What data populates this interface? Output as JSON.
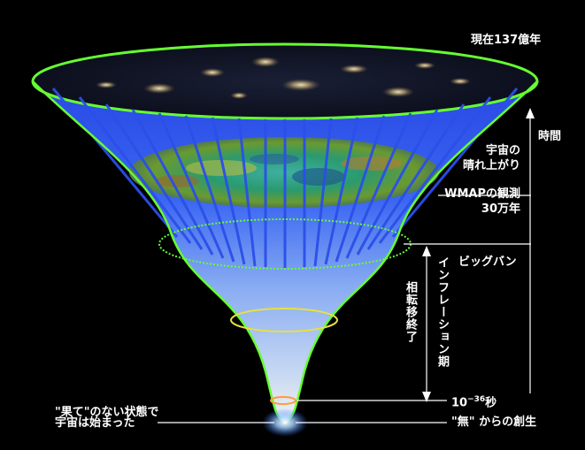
{
  "labels": {
    "present": "現在137億年",
    "time": "時間",
    "clear_up_line1": "宇宙の",
    "clear_up_line2": "晴れ上がり",
    "wmap_line1": "WMAPの観測",
    "wmap_line2": "30万年",
    "big_bang": "ビッグバン",
    "inflation_period": "インフレーション期",
    "phase_transition": "相転移終了",
    "time_base": "10",
    "time_exp": "−36",
    "time_unit": "秒",
    "no_end_line1": "\"果て\"のない状態で",
    "no_end_line2": "宇宙は始まった",
    "creation": "\"無\" からの創生"
  },
  "colors": {
    "background": "#000000",
    "funnel_blue": "#2f5fff",
    "rim_green": "#66ff33",
    "ring_yellow": "#e8e040",
    "ring_orange": "#ff9a3a",
    "text": "#ffffff"
  }
}
